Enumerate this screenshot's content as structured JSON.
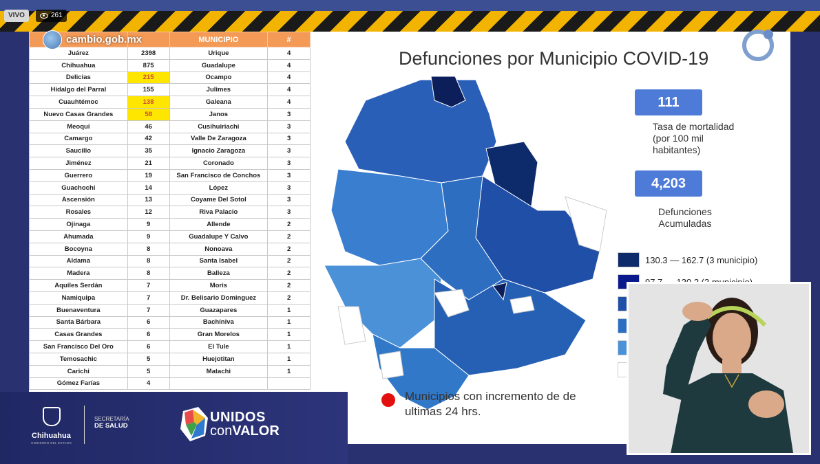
{
  "stream": {
    "live_label": "VIVO",
    "viewers": "261"
  },
  "watermark": "cambio.gob.mx",
  "table": {
    "headers": [
      "",
      "",
      "MUNICIPIO",
      "#"
    ],
    "rows": [
      [
        "Juárez",
        "2398",
        "Urique",
        "4"
      ],
      [
        "Chihuahua",
        "875",
        "Guadalupe",
        "4"
      ],
      [
        "Delicias",
        "215",
        "Ocampo",
        "4"
      ],
      [
        "Hidalgo del Parral",
        "155",
        "Julimes",
        "4"
      ],
      [
        "Cuauhtémoc",
        "138",
        "Galeana",
        "4"
      ],
      [
        "Nuevo Casas Grandes",
        "58",
        "Janos",
        "3"
      ],
      [
        "Meoqui",
        "46",
        "Cusihuiriachi",
        "3"
      ],
      [
        "Camargo",
        "42",
        "Valle De Zaragoza",
        "3"
      ],
      [
        "Saucillo",
        "35",
        "Ignacio Zaragoza",
        "3"
      ],
      [
        "Jiménez",
        "21",
        "Coronado",
        "3"
      ],
      [
        "Guerrero",
        "19",
        "San Francisco de Conchos",
        "3"
      ],
      [
        "Guachochi",
        "14",
        "López",
        "3"
      ],
      [
        "Ascensión",
        "13",
        "Coyame Del Sotol",
        "3"
      ],
      [
        "Rosales",
        "12",
        "Riva Palacio",
        "3"
      ],
      [
        "Ojinaga",
        "9",
        "Allende",
        "2"
      ],
      [
        "Ahumada",
        "9",
        "Guadalupe Y Calvo",
        "2"
      ],
      [
        "Bocoyna",
        "8",
        "Nonoava",
        "2"
      ],
      [
        "Aldama",
        "8",
        "Santa Isabel",
        "2"
      ],
      [
        "Madera",
        "8",
        "Balleza",
        "2"
      ],
      [
        "Aquiles Serdán",
        "7",
        "Moris",
        "2"
      ],
      [
        "Namiquipa",
        "7",
        "Dr. Belisario Dominguez",
        "2"
      ],
      [
        "Buenaventura",
        "7",
        "Guazapares",
        "1"
      ],
      [
        "Santa Bárbara",
        "6",
        "Bachíniva",
        "1"
      ],
      [
        "Casas Grandes",
        "6",
        "Gran Morelos",
        "1"
      ],
      [
        "San Francisco Del Oro",
        "6",
        "El Tule",
        "1"
      ],
      [
        "Temosachic",
        "5",
        "Huejotitan",
        "1"
      ],
      [
        "Carichi",
        "5",
        "Matachi",
        "1"
      ],
      [
        "Gómez Farías",
        "4",
        "",
        ""
      ]
    ],
    "highlighted_rows": [
      2,
      4,
      5
    ]
  },
  "slide": {
    "title": "Defunciones por Municipio COVID-19",
    "rate_value": "111",
    "rate_label": [
      "Tasa de mortalidad",
      "(por 100 mil",
      "habitantes)"
    ],
    "deaths_value": "4,203",
    "deaths_label": [
      "Defunciones",
      "Acumuladas"
    ],
    "legend": [
      {
        "label": "130.3 — 162.7 (3 municipio)",
        "color": "#0d2a6b"
      },
      {
        "label": "97.7 — 130.2 (3 municipio)",
        "color": "#0a1a8c"
      },
      {
        "label": "",
        "color": "#1f4fa6"
      },
      {
        "label": "",
        "color": "#2a6fc2"
      },
      {
        "label": "",
        "color": "#4a91d8"
      },
      {
        "label": "",
        "color": "#ffffff"
      }
    ],
    "increment_note": [
      "Municipios con incremento de de",
      "ultimas 24 hrs."
    ]
  },
  "banner": {
    "state": "Chihuahua",
    "gov": "GOBIERNO DEL ESTADO",
    "sec_line1": "SECRETARÍA",
    "sec_line2": "DE SALUD",
    "campaign_1": "UNIDOS",
    "campaign_2a": "con",
    "campaign_2b": "VALOR"
  },
  "colors": {
    "accent": "#4f7bd8",
    "header": "#f39a57",
    "highlight": "#ffe600",
    "banner": "#2a3170"
  }
}
